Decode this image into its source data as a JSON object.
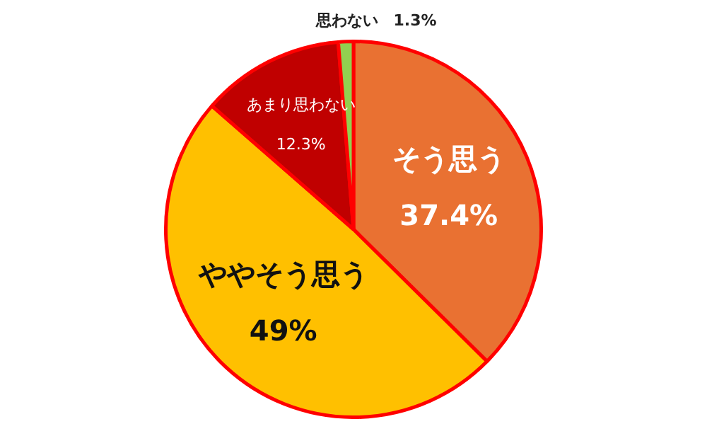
{
  "chart_data": {
    "type": "pie",
    "categories": [
      "そう思う",
      "ややそう思う",
      "あまり思わない",
      "思わない"
    ],
    "values": [
      37.4,
      49,
      12.3,
      1.3
    ],
    "colors": [
      "#e97132",
      "#ffc000",
      "#c00000",
      "#92d050"
    ],
    "value_labels": [
      "37.4%",
      "49%",
      "12.3%",
      "1.3%"
    ],
    "legend": false
  }
}
